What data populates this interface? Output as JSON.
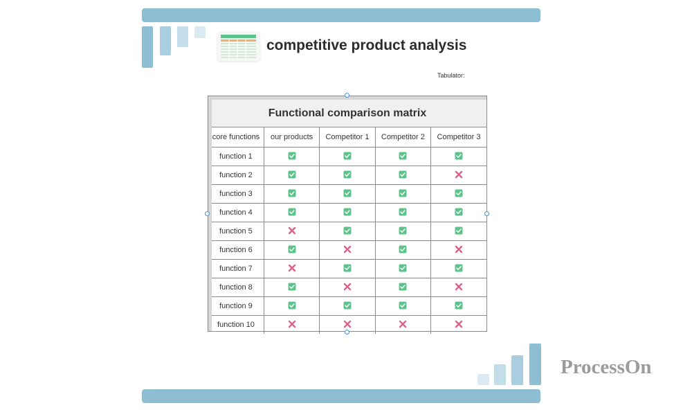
{
  "header": {
    "title": "competitive product analysis",
    "tabulator_label": "Tabulator:"
  },
  "brand": {
    "logo_text": "ProcessOn"
  },
  "colors": {
    "accent_bar": "#8dbed3",
    "check": "#5cc38b",
    "cross": "#e0608a"
  },
  "matrix": {
    "title": "Functional comparison matrix",
    "columns": [
      "core functions",
      "our products",
      "Competitor 1",
      "Competitor 2",
      "Competitor 3"
    ],
    "rows": [
      {
        "name": "function 1",
        "values": [
          "check",
          "check",
          "check",
          "check"
        ]
      },
      {
        "name": "function 2",
        "values": [
          "check",
          "check",
          "check",
          "cross"
        ]
      },
      {
        "name": "function 3",
        "values": [
          "check",
          "check",
          "check",
          "check"
        ]
      },
      {
        "name": "function 4",
        "values": [
          "check",
          "check",
          "check",
          "check"
        ]
      },
      {
        "name": "function 5",
        "values": [
          "cross",
          "check",
          "check",
          "check"
        ]
      },
      {
        "name": "function 6",
        "values": [
          "check",
          "cross",
          "check",
          "cross"
        ]
      },
      {
        "name": "function 7",
        "values": [
          "cross",
          "check",
          "check",
          "check"
        ]
      },
      {
        "name": "function 8",
        "values": [
          "check",
          "cross",
          "check",
          "cross"
        ]
      },
      {
        "name": "function 9",
        "values": [
          "check",
          "check",
          "check",
          "check"
        ]
      },
      {
        "name": "function 10",
        "values": [
          "cross",
          "cross",
          "cross",
          "cross"
        ]
      }
    ]
  }
}
